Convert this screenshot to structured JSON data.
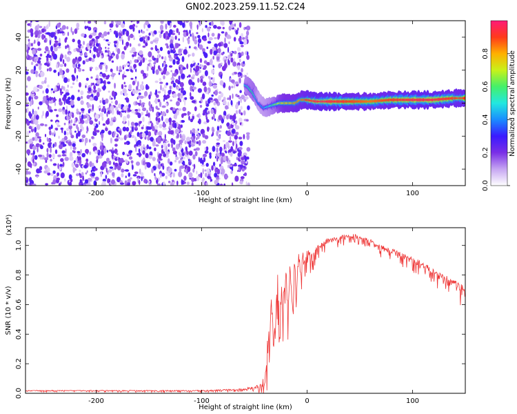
{
  "title": "GN02.2023.259.11.52.C24",
  "chart_data": [
    {
      "type": "heatmap",
      "panel": "spectrogram",
      "xlabel": "Height of straight line (km)",
      "ylabel": "Frequency (Hz)",
      "xlim": [
        -267,
        150
      ],
      "ylim": [
        -50,
        50
      ],
      "x_ticks": [
        -200,
        -100,
        0,
        100
      ],
      "y_ticks": [
        -40,
        -20,
        0,
        20,
        40
      ],
      "x_tick_labels": [
        "-200",
        "-100",
        "0",
        "100"
      ],
      "y_tick_labels": [
        "-40",
        "-20",
        "0",
        "20",
        "40"
      ],
      "noise_region": {
        "x_from": -267,
        "x_to": -58,
        "freq_from": -50,
        "freq_to": 50,
        "amplitude": 0.2
      },
      "signal_trace": {
        "x": [
          -58,
          -55,
          -50,
          -45,
          -40,
          -35,
          -30,
          -25,
          -20,
          -15,
          -10,
          -5,
          0,
          10,
          20,
          40,
          60,
          80,
          100,
          120,
          140,
          150
        ],
        "freq": [
          11,
          10,
          6,
          0,
          -3,
          -2,
          -1,
          0,
          0,
          0,
          0,
          2,
          2,
          1,
          1,
          1,
          1,
          2,
          2,
          2,
          3,
          3
        ],
        "amplitude": [
          0.5,
          0.55,
          0.6,
          0.4,
          0.45,
          0.5,
          0.6,
          0.75,
          0.8,
          0.8,
          0.85,
          0.85,
          0.9,
          0.95,
          0.95,
          0.9,
          0.85,
          0.9,
          0.95,
          0.95,
          0.9,
          0.9
        ]
      },
      "colorbar": {
        "label": "Normalized spectral amplitude",
        "range": [
          0,
          1
        ],
        "ticks": [
          0,
          0.2,
          0.4,
          0.6,
          0.8
        ],
        "tick_labels": [
          "0.0",
          "0.2",
          "0.4",
          "0.6",
          "0.8"
        ],
        "colors": [
          "#ffffff",
          "#c6a6f2",
          "#7a2fe6",
          "#3a1aff",
          "#1a8cff",
          "#22e8e0",
          "#44f06a",
          "#c8f21a",
          "#ffb000",
          "#ff3a1a",
          "#ff1a78"
        ]
      }
    },
    {
      "type": "line",
      "panel": "snr",
      "xlabel": "Height of straight line (km)",
      "ylabel": "SNR (10 * v/v)",
      "scale_label": "(x10⁴)",
      "xlim": [
        -267,
        150
      ],
      "ylim": [
        0,
        1.12
      ],
      "x_ticks": [
        -200,
        -100,
        0,
        100
      ],
      "y_ticks": [
        0,
        0.2,
        0.4,
        0.6,
        0.8,
        1.0
      ],
      "x_tick_labels": [
        "-200",
        "-100",
        "0",
        "100"
      ],
      "y_tick_labels": [
        "0.0",
        "0.2",
        "0.4",
        "0.6",
        "0.8",
        "1.0"
      ],
      "color": "#ee3333",
      "series": [
        {
          "x": [
            -267,
            -200,
            -100,
            -60,
            -45,
            -40,
            -38,
            -36,
            -34,
            -32,
            -30,
            -28,
            -26,
            -24,
            -22,
            -20,
            -18,
            -16,
            -14,
            -12,
            -10,
            -8,
            -6,
            -4,
            -2,
            0,
            5,
            10,
            15,
            20,
            25,
            30,
            35,
            40,
            45,
            50,
            55,
            60,
            70,
            80,
            90,
            100,
            110,
            120,
            130,
            140,
            150
          ],
          "y": [
            0.02,
            0.02,
            0.02,
            0.03,
            0.06,
            0.12,
            0.3,
            0.5,
            0.65,
            0.4,
            0.55,
            0.8,
            0.5,
            0.75,
            0.7,
            0.85,
            0.65,
            0.88,
            0.7,
            0.9,
            0.75,
            0.95,
            0.85,
            0.95,
            0.9,
            0.97,
            0.95,
            1.0,
            1.02,
            1.05,
            1.05,
            1.06,
            1.07,
            1.07,
            1.08,
            1.06,
            1.05,
            1.04,
            1.0,
            0.98,
            0.95,
            0.92,
            0.88,
            0.85,
            0.8,
            0.76,
            0.72
          ],
          "noise_amplitude": [
            0.01,
            0.01,
            0.01,
            0.02,
            0.04,
            0.1,
            0.3,
            0.35,
            0.35,
            0.35,
            0.35,
            0.3,
            0.3,
            0.3,
            0.3,
            0.25,
            0.25,
            0.2,
            0.2,
            0.2,
            0.18,
            0.15,
            0.15,
            0.12,
            0.12,
            0.12,
            0.1,
            0.08,
            0.06,
            0.05,
            0.05,
            0.05,
            0.05,
            0.05,
            0.05,
            0.05,
            0.05,
            0.05,
            0.06,
            0.06,
            0.07,
            0.08,
            0.08,
            0.09,
            0.1,
            0.1,
            0.1
          ]
        }
      ]
    }
  ]
}
